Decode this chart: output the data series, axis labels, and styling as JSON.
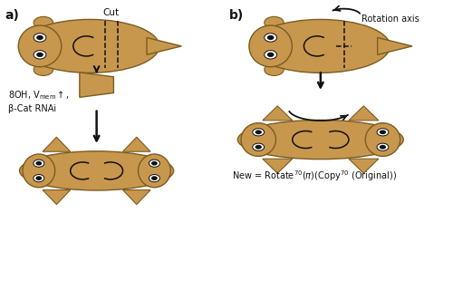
{
  "fig_width": 5.0,
  "fig_height": 3.1,
  "dpi": 100,
  "bg_color": "#ffffff",
  "worm_color": "#c8974e",
  "worm_edge_color": "#7a5c20",
  "eye_white": "#ffffff",
  "eye_black": "#111111",
  "arrow_color": "#111111",
  "text_color": "#111111",
  "label_a": "a)",
  "label_b": "b)",
  "cut_label": "Cut",
  "rotation_label": "Rotation axis",
  "treatment_line1": "8OH, V",
  "treatment_line2": "β-Cat RNAi",
  "equation": "New = Rotate$^{70}$(π)(Copy$^{70}$ (Original))"
}
